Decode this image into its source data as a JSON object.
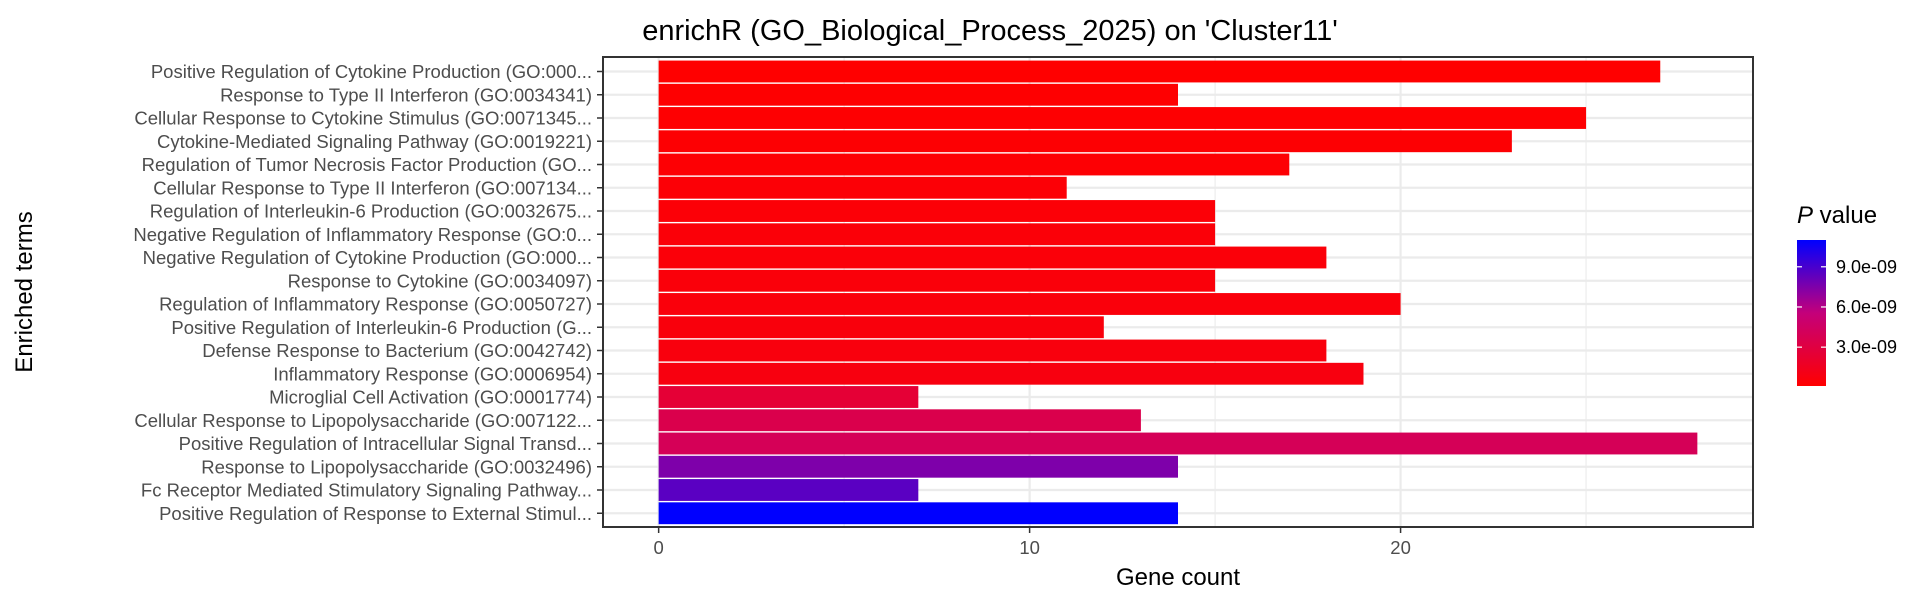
{
  "chart_data": {
    "type": "bar",
    "orientation": "horizontal",
    "title": "enrichR (GO_Biological_Process_2025) on 'Cluster11'",
    "xlabel": "Gene count",
    "ylabel": "Enriched terms",
    "xlim": [
      -1.5,
      29.5
    ],
    "xticks": [
      0,
      10,
      20
    ],
    "grid": true,
    "legend": {
      "title_italic": "P",
      "title_rest": " value",
      "placement": "right",
      "min_color": "#ff0000",
      "max_color": "#0000ff",
      "range": [
        1e-10,
        1.1e-08
      ],
      "ticks": [
        {
          "value": 3e-09,
          "label": "3.0e-09"
        },
        {
          "value": 6e-09,
          "label": "6.0e-09"
        },
        {
          "value": 9e-09,
          "label": "9.0e-09"
        }
      ]
    },
    "categories": [
      "Positive Regulation of Cytokine Production (GO:000...",
      "Response to Type II Interferon (GO:0034341)",
      "Cellular Response to Cytokine Stimulus (GO:0071345...",
      "Cytokine-Mediated Signaling Pathway (GO:0019221)",
      "Regulation of Tumor Necrosis Factor Production (GO...",
      "Cellular Response to Type II Interferon (GO:007134...",
      "Regulation of Interleukin-6 Production (GO:0032675...",
      "Negative Regulation of Inflammatory Response (GO:0...",
      "Negative Regulation of Cytokine Production (GO:000...",
      "Response to Cytokine (GO:0034097)",
      "Regulation of Inflammatory Response (GO:0050727)",
      "Positive Regulation of Interleukin-6 Production (G...",
      "Defense Response to Bacterium (GO:0042742)",
      "Inflammatory Response (GO:0006954)",
      "Microglial Cell Activation (GO:0001774)",
      "Cellular Response to Lipopolysaccharide (GO:007122...",
      "Positive Regulation of Intracellular Signal Transd...",
      "Response to Lipopolysaccharide (GO:0032496)",
      "Fc Receptor Mediated Stimulatory Signaling Pathway...",
      "Positive Regulation of Response to External Stimul..."
    ],
    "values": [
      27,
      14,
      25,
      23,
      17,
      11,
      15,
      15,
      18,
      15,
      20,
      12,
      18,
      19,
      7,
      13,
      28,
      14,
      7,
      14
    ],
    "p_values": [
      1e-10,
      1.5e-10,
      2e-10,
      2.5e-10,
      3e-10,
      3.5e-10,
      4e-10,
      4.5e-10,
      5e-10,
      5.5e-10,
      6e-10,
      6.5e-10,
      7e-10,
      7.5e-10,
      2.5e-09,
      3.5e-09,
      4e-09,
      7.5e-09,
      8.5e-09,
      1.1e-08
    ]
  }
}
